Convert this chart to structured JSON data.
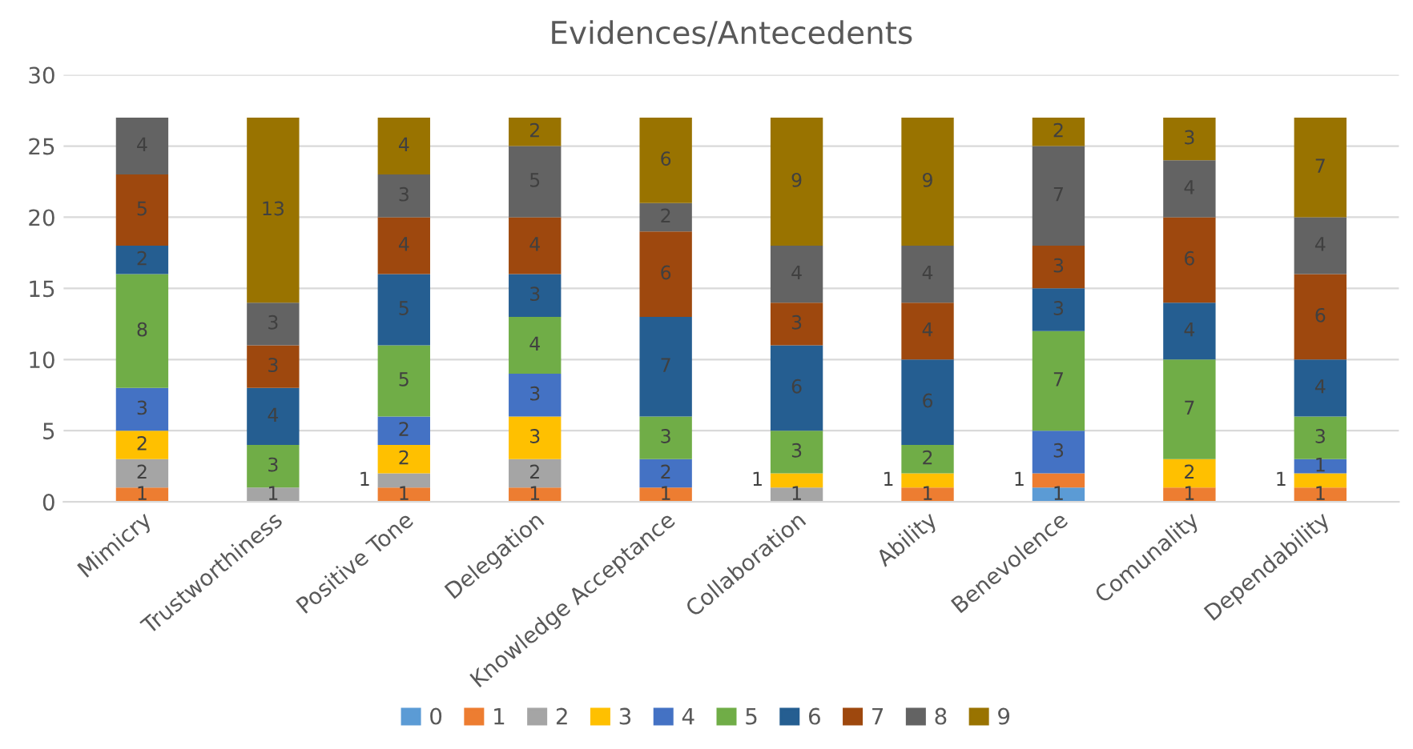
{
  "chart_data": {
    "type": "bar",
    "stacked": true,
    "title": "Evidences/Antecedents",
    "categories": [
      "Mimicry",
      "Trustworthiness",
      "Positive Tone",
      "Delegation",
      "Knowledge Acceptance",
      "Collaboration",
      "Ability",
      "Benevolence",
      "Comunality",
      "Dependability"
    ],
    "series": [
      {
        "name": "0",
        "color": "#5b9bd5",
        "values": [
          0,
          0,
          0,
          0,
          0,
          0,
          0,
          1,
          0,
          0
        ],
        "value_labels": [
          null,
          null,
          null,
          null,
          null,
          null,
          null,
          "1",
          null,
          null
        ]
      },
      {
        "name": "1",
        "color": "#ed7d31",
        "values": [
          1,
          0,
          1,
          1,
          1,
          0,
          1,
          1,
          1,
          1
        ],
        "value_labels": [
          "1",
          null,
          "1",
          "1",
          "1",
          null,
          "1",
          "1",
          "1",
          "1"
        ]
      },
      {
        "name": "2",
        "color": "#a5a5a5",
        "values": [
          2,
          1,
          1,
          2,
          0,
          1,
          0,
          0,
          0,
          0
        ],
        "value_labels": [
          "2",
          "1",
          "1",
          "2",
          null,
          "1",
          null,
          null,
          null,
          null
        ]
      },
      {
        "name": "3",
        "color": "#ffc000",
        "values": [
          2,
          0,
          2,
          3,
          0,
          1,
          1,
          0,
          2,
          1
        ],
        "value_labels": [
          "2",
          null,
          "2",
          "3",
          null,
          "1",
          "1",
          null,
          "2",
          "1"
        ]
      },
      {
        "name": "4",
        "color": "#4472c4",
        "values": [
          3,
          0,
          2,
          3,
          2,
          0,
          0,
          3,
          0,
          1
        ],
        "value_labels": [
          "3",
          null,
          "2",
          "3",
          "2",
          null,
          null,
          "3",
          null,
          "1"
        ]
      },
      {
        "name": "5",
        "color": "#70ad47",
        "values": [
          8,
          3,
          5,
          4,
          3,
          3,
          2,
          7,
          7,
          3
        ],
        "value_labels": [
          "8",
          "3",
          "5",
          "4",
          "3",
          "3",
          "2",
          "7",
          "7",
          "3"
        ]
      },
      {
        "name": "6",
        "color": "#255e91",
        "values": [
          2,
          4,
          5,
          3,
          7,
          6,
          6,
          3,
          4,
          4
        ],
        "value_labels": [
          "2",
          "4",
          "5",
          "3",
          "7",
          "6",
          "6",
          "3",
          "4",
          "4"
        ]
      },
      {
        "name": "7",
        "color": "#9e480e",
        "values": [
          5,
          3,
          4,
          4,
          6,
          3,
          4,
          3,
          6,
          6
        ],
        "value_labels": [
          "5",
          "3",
          "4",
          "4",
          "6",
          "3",
          "4",
          "3",
          "6",
          "6"
        ]
      },
      {
        "name": "8",
        "color": "#636363",
        "values": [
          4,
          3,
          3,
          5,
          2,
          4,
          4,
          7,
          4,
          4
        ],
        "value_labels": [
          "4",
          "3",
          "3",
          "5",
          "2",
          "4",
          "4",
          "7",
          "4",
          "4"
        ]
      },
      {
        "name": "9",
        "color": "#997300",
        "values": [
          0,
          13,
          4,
          2,
          6,
          9,
          9,
          2,
          3,
          7
        ],
        "value_labels": [
          null,
          "13",
          "4",
          "2",
          "6",
          "9",
          "9",
          "2",
          "3",
          "7"
        ]
      }
    ],
    "ylim": [
      0,
      30
    ],
    "yticks": [
      0,
      5,
      10,
      15,
      20,
      25,
      30
    ],
    "grid": "y",
    "legend": "bottom"
  }
}
